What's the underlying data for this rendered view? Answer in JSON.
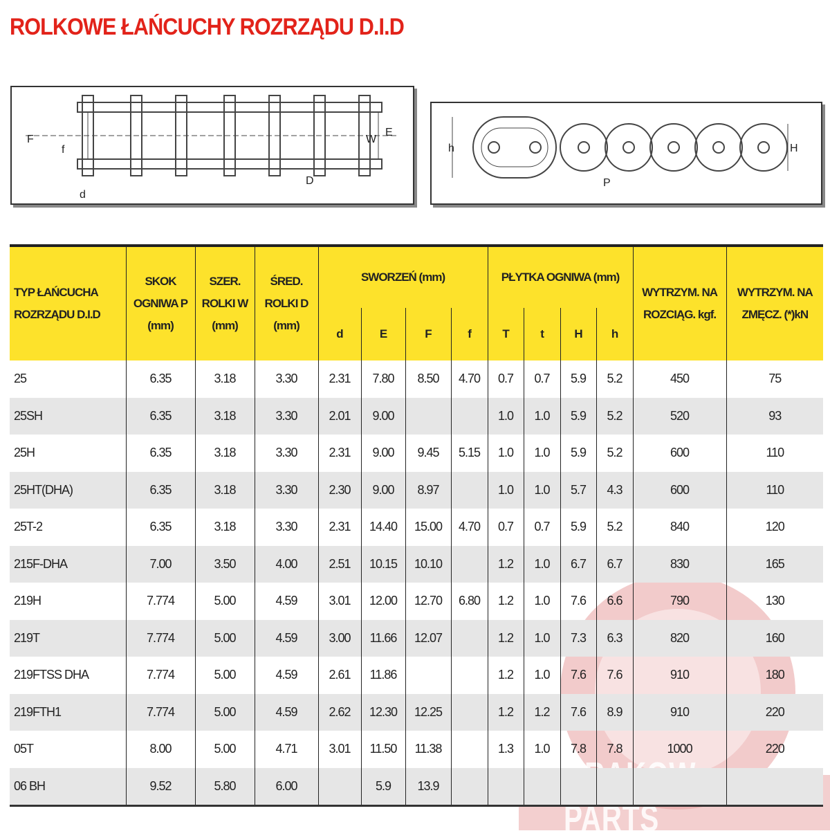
{
  "title": "ROLKOWE ŁAŃCUCHY ROZRZĄDU D.I.D",
  "diagram_side": {
    "labels": [
      "F",
      "f",
      "d",
      "W",
      "E",
      "D"
    ]
  },
  "diagram_front": {
    "labels": [
      "h",
      "P",
      "H"
    ]
  },
  "table": {
    "headers": {
      "type": "TYP ŁAŃCUCHA ROZRZĄDU D.I.D",
      "pitch": "SKOK OGNIWA P (mm)",
      "width": "SZER. ROLKI W (mm)",
      "diam": "ŚRED. ROLKI D (mm)",
      "pin": "SWORZEŃ (mm)",
      "pin_sub": [
        "d",
        "E",
        "F",
        "f"
      ],
      "plate": "PŁYTKA OGNIWA (mm)",
      "plate_sub": [
        "T",
        "t",
        "H",
        "h"
      ],
      "tensile": "WYTRZYM. NA ROZCIĄG. kgf.",
      "fatigue": "WYTRZYM. NA ZMĘCZ. (*)kN"
    },
    "rows": [
      [
        "25",
        "6.35",
        "3.18",
        "3.30",
        "2.31",
        "7.80",
        "8.50",
        "4.70",
        "0.7",
        "0.7",
        "5.9",
        "5.2",
        "450",
        "75"
      ],
      [
        "25SH",
        "6.35",
        "3.18",
        "3.30",
        "2.01",
        "9.00",
        "",
        "",
        "1.0",
        "1.0",
        "5.9",
        "5.2",
        "520",
        "93"
      ],
      [
        "25H",
        "6.35",
        "3.18",
        "3.30",
        "2.31",
        "9.00",
        "9.45",
        "5.15",
        "1.0",
        "1.0",
        "5.9",
        "5.2",
        "600",
        "110"
      ],
      [
        "25HT(DHA)",
        "6.35",
        "3.18",
        "3.30",
        "2.30",
        "9.00",
        "8.97",
        "",
        "1.0",
        "1.0",
        "5.7",
        "4.3",
        "600",
        "110"
      ],
      [
        "25T-2",
        "6.35",
        "3.18",
        "3.30",
        "2.31",
        "14.40",
        "15.00",
        "4.70",
        "0.7",
        "0.7",
        "5.9",
        "5.2",
        "840",
        "120"
      ],
      [
        "215F-DHA",
        "7.00",
        "3.50",
        "4.00",
        "2.51",
        "10.15",
        "10.10",
        "",
        "1.2",
        "1.0",
        "6.7",
        "6.7",
        "830",
        "165"
      ],
      [
        "219H",
        "7.774",
        "5.00",
        "4.59",
        "3.01",
        "12.00",
        "12.70",
        "6.80",
        "1.2",
        "1.0",
        "7.6",
        "6.6",
        "790",
        "130"
      ],
      [
        "219T",
        "7.774",
        "5.00",
        "4.59",
        "3.00",
        "11.66",
        "12.07",
        "",
        "1.2",
        "1.0",
        "7.3",
        "6.3",
        "820",
        "160"
      ],
      [
        "219FTSS DHA",
        "7.774",
        "5.00",
        "4.59",
        "2.61",
        "11.86",
        "",
        "",
        "1.2",
        "1.0",
        "7.6",
        "7.6",
        "910",
        "180"
      ],
      [
        "219FTH1",
        "7.774",
        "5.00",
        "4.59",
        "2.62",
        "12.30",
        "12.25",
        "",
        "1.2",
        "1.2",
        "7.6",
        "8.9",
        "910",
        "220"
      ],
      [
        "05T",
        "8.00",
        "5.00",
        "4.71",
        "3.01",
        "11.50",
        "11.38",
        "",
        "1.3",
        "1.0",
        "7.8",
        "7.8",
        "1000",
        "220"
      ],
      [
        "06 BH",
        "9.52",
        "5.80",
        "6.00",
        "",
        "5.9",
        "13.9",
        "",
        "",
        "",
        "",
        "",
        "",
        ""
      ]
    ]
  },
  "watermark": "KRAKOW PARTS",
  "colors": {
    "title": "#e2231a",
    "header": "#fde22b",
    "watermark": "#e8a0a0"
  }
}
